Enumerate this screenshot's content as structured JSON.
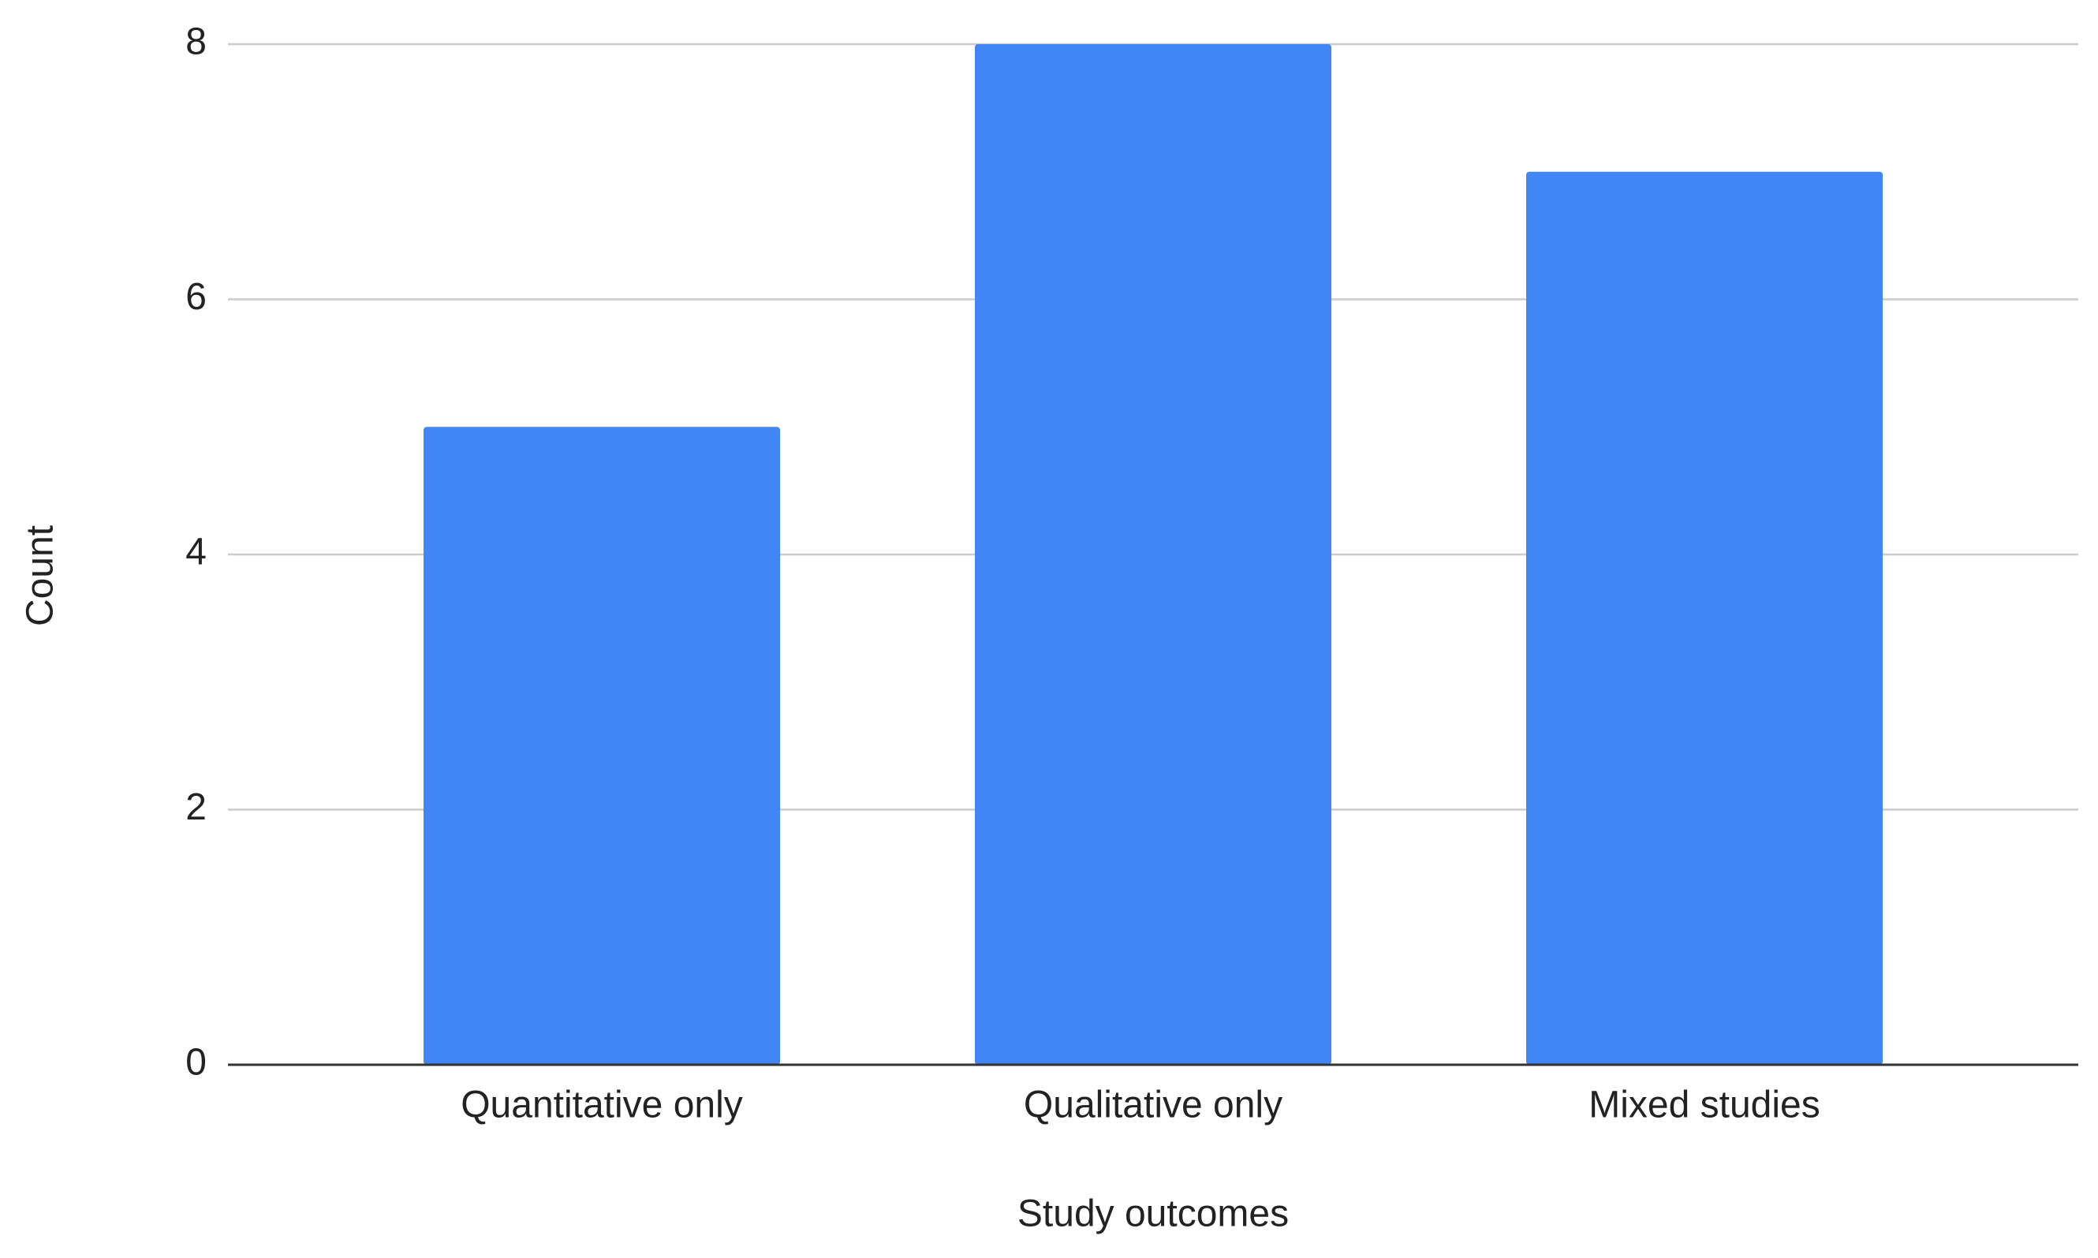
{
  "chart_data": {
    "type": "bar",
    "x_label": "Study outcomes",
    "y_label": "Count",
    "categories": [
      "Quantitative only",
      "Qualitative only",
      "Mixed studies"
    ],
    "values": [
      5,
      8,
      7
    ],
    "color": "#4285f4",
    "ylim": [
      0,
      8
    ],
    "yticks": [
      0,
      2,
      4,
      6,
      8
    ],
    "grid": true
  }
}
